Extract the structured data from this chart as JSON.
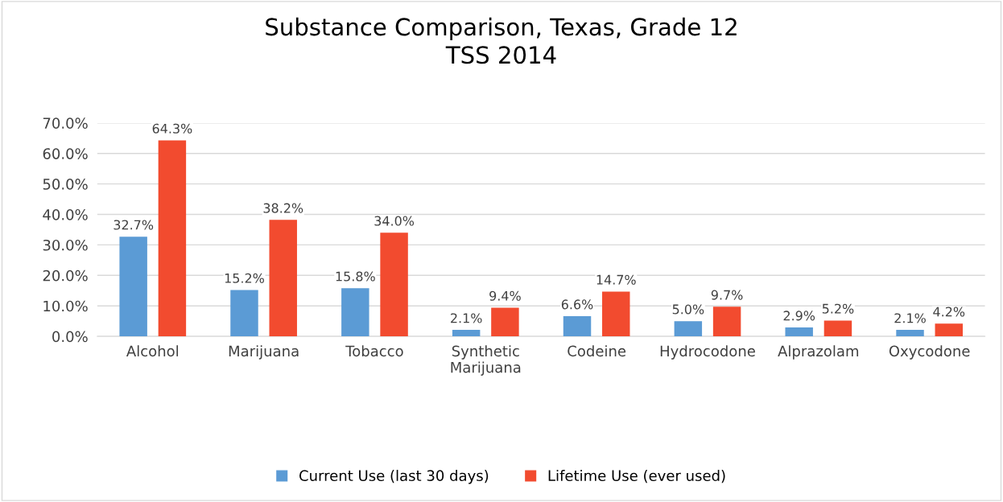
{
  "chart_data": {
    "type": "bar",
    "title": "Substance Comparison, Texas, Grade 12\nTSS 2014",
    "categories": [
      "Alcohol",
      "Marijuana",
      "Tobacco",
      "Synthetic\nMarijuana",
      "Codeine",
      "Hydrocodone",
      "Alprazolam",
      "Oxycodone"
    ],
    "series": [
      {
        "name": "Current Use (last 30 days)",
        "color": "#5b9bd5",
        "values": [
          32.7,
          15.2,
          15.8,
          2.1,
          6.6,
          5.0,
          2.9,
          2.1
        ],
        "value_labels": [
          "32.7%",
          "15.2%",
          "15.8%",
          "2.1%",
          "6.6%",
          "5.0%",
          "2.9%",
          "2.1%"
        ]
      },
      {
        "name": "Lifetime Use (ever used)",
        "color": "#f24b2f",
        "values": [
          64.3,
          38.2,
          34.0,
          9.4,
          14.7,
          9.7,
          5.2,
          4.2
        ],
        "value_labels": [
          "64.3%",
          "38.2%",
          "34.0%",
          "9.4%",
          "14.7%",
          "9.7%",
          "5.2%",
          "4.2%"
        ]
      }
    ],
    "ylim": [
      0,
      70
    ],
    "yticks": [
      {
        "value": 0,
        "label": "0.0%"
      },
      {
        "value": 10,
        "label": "10.0%"
      },
      {
        "value": 20,
        "label": "20.0%"
      },
      {
        "value": 30,
        "label": "30.0%"
      },
      {
        "value": 40,
        "label": "40.0%"
      },
      {
        "value": 50,
        "label": "50.0%"
      },
      {
        "value": 60,
        "label": "60.0%"
      },
      {
        "value": 70,
        "label": "70.0%"
      }
    ],
    "grid": "y",
    "legend": "bottom"
  }
}
